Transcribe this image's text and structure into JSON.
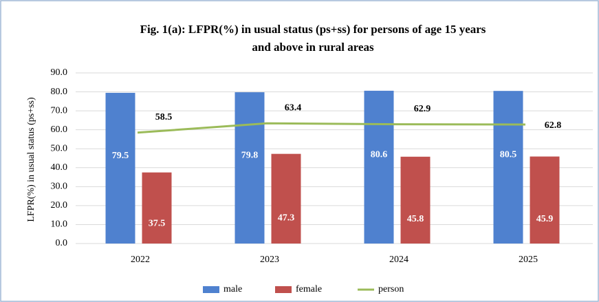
{
  "chart_data": {
    "type": "bar",
    "title": "Fig. 1(a): LFPR(%)  in usual status (ps+ss) for persons of age 15 years",
    "subtitle": "and above in rural  areas",
    "y_label": "LFPR(%)  in usual status (ps+ss)",
    "categories": [
      "2022",
      "2023",
      "2024",
      "2025"
    ],
    "series": [
      {
        "name": "male",
        "color": "#4f81cf",
        "type": "bar",
        "values": [
          79.5,
          79.8,
          80.6,
          80.5
        ]
      },
      {
        "name": "female",
        "color": "#c0504d",
        "type": "bar",
        "values": [
          37.5,
          47.3,
          45.8,
          45.9
        ]
      },
      {
        "name": "person",
        "color": "#9bbb59",
        "type": "line",
        "values": [
          58.5,
          63.4,
          62.9,
          62.8
        ]
      }
    ],
    "ylim": [
      0,
      90
    ],
    "yticks": [
      {
        "value": 0,
        "label": "0.0"
      },
      {
        "value": 10,
        "label": "10.0"
      },
      {
        "value": 20,
        "label": "20.0"
      },
      {
        "value": 30,
        "label": "30.0"
      },
      {
        "value": 40,
        "label": "40.0"
      },
      {
        "value": 50,
        "label": "50.0"
      },
      {
        "value": 60,
        "label": "60.0"
      },
      {
        "value": 70,
        "label": "70.0"
      },
      {
        "value": 80,
        "label": "80.0"
      },
      {
        "value": 90,
        "label": "90.0"
      }
    ],
    "grid": true,
    "legend": "bottom"
  }
}
